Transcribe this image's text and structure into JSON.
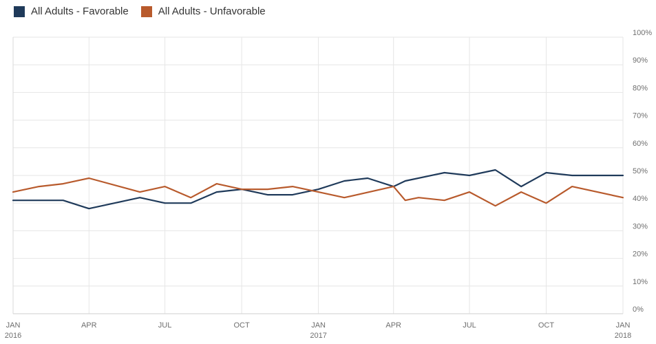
{
  "chart_data": {
    "type": "line",
    "title": "",
    "xlabel": "",
    "ylabel": "",
    "ylim": [
      0,
      100
    ],
    "y_ticks": [
      "0%",
      "10%",
      "20%",
      "30%",
      "40%",
      "50%",
      "60%",
      "70%",
      "80%",
      "90%",
      "100%"
    ],
    "y_axis_side": "right",
    "x_ticks": [
      {
        "date": "2016-01",
        "label": "JAN",
        "year": "2016"
      },
      {
        "date": "2016-04",
        "label": "APR",
        "year": ""
      },
      {
        "date": "2016-07",
        "label": "JUL",
        "year": ""
      },
      {
        "date": "2016-10",
        "label": "OCT",
        "year": ""
      },
      {
        "date": "2017-01",
        "label": "JAN",
        "year": "2017"
      },
      {
        "date": "2017-04",
        "label": "APR",
        "year": ""
      },
      {
        "date": "2017-07",
        "label": "JUL",
        "year": ""
      },
      {
        "date": "2017-10",
        "label": "OCT",
        "year": ""
      },
      {
        "date": "2018-01",
        "label": "JAN",
        "year": "2018"
      }
    ],
    "grid": "vertical-at-ticks-and-horizontal",
    "legend_position": "top-left",
    "series": [
      {
        "name": "All Adults - Favorable",
        "color": "#1f3a5a",
        "points": [
          [
            "2016-01-01",
            41
          ],
          [
            "2016-03-01",
            41
          ],
          [
            "2016-04-01",
            38
          ],
          [
            "2016-06-01",
            42
          ],
          [
            "2016-07-01",
            40
          ],
          [
            "2016-08-01",
            40
          ],
          [
            "2016-09-01",
            44
          ],
          [
            "2016-10-01",
            45
          ],
          [
            "2016-11-01",
            43
          ],
          [
            "2016-12-01",
            43
          ],
          [
            "2017-01-01",
            45
          ],
          [
            "2017-02-01",
            48
          ],
          [
            "2017-03-01",
            49
          ],
          [
            "2017-04-01",
            46
          ],
          [
            "2017-04-15",
            48
          ],
          [
            "2017-06-01",
            51
          ],
          [
            "2017-07-01",
            50
          ],
          [
            "2017-08-01",
            52
          ],
          [
            "2017-09-01",
            46
          ],
          [
            "2017-10-01",
            51
          ],
          [
            "2017-11-01",
            50
          ],
          [
            "2018-01-01",
            50
          ]
        ]
      },
      {
        "name": "All Adults - Unfavorable",
        "color": "#b85a2c",
        "points": [
          [
            "2016-01-01",
            44
          ],
          [
            "2016-02-01",
            46
          ],
          [
            "2016-03-01",
            47
          ],
          [
            "2016-04-01",
            49
          ],
          [
            "2016-06-01",
            44
          ],
          [
            "2016-07-01",
            46
          ],
          [
            "2016-08-01",
            42
          ],
          [
            "2016-09-01",
            47
          ],
          [
            "2016-10-01",
            45
          ],
          [
            "2016-11-01",
            45
          ],
          [
            "2016-12-01",
            46
          ],
          [
            "2017-01-01",
            44
          ],
          [
            "2017-02-01",
            42
          ],
          [
            "2017-04-01",
            46
          ],
          [
            "2017-04-15",
            41
          ],
          [
            "2017-05-01",
            42
          ],
          [
            "2017-06-01",
            41
          ],
          [
            "2017-07-01",
            44
          ],
          [
            "2017-08-01",
            39
          ],
          [
            "2017-09-01",
            44
          ],
          [
            "2017-10-01",
            40
          ],
          [
            "2017-11-01",
            46
          ],
          [
            "2018-01-01",
            42
          ]
        ]
      }
    ]
  }
}
